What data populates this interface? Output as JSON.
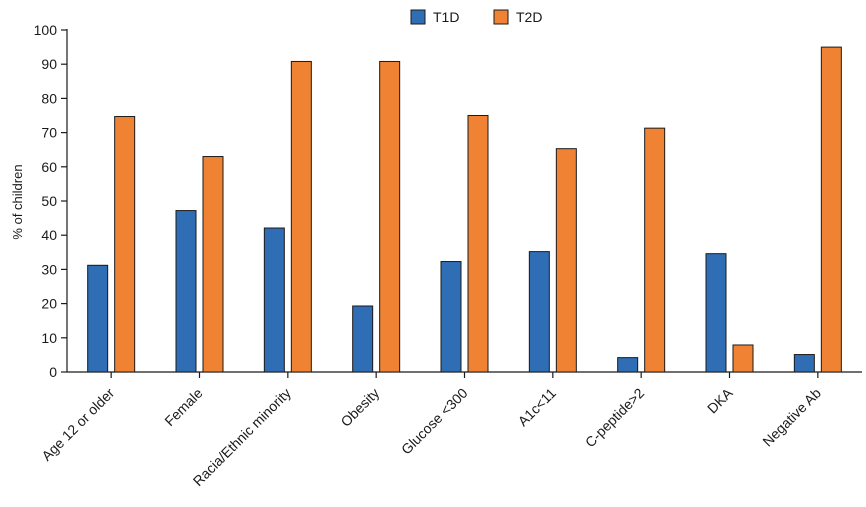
{
  "chart_data": {
    "type": "bar",
    "title": "",
    "xlabel": "",
    "ylabel": "% of children",
    "ylim": [
      0,
      100
    ],
    "yticks": [
      0,
      10,
      20,
      30,
      40,
      50,
      60,
      70,
      80,
      90,
      100
    ],
    "grid": false,
    "legend_position": "top-center",
    "categories": [
      "Age 12 or older",
      "Female",
      "Racia/Ethnic minority",
      "Obesity",
      "Glucose <300",
      "A1c<11",
      "C-peptide>2",
      "DKA",
      "Negative Ab"
    ],
    "series": [
      {
        "name": "T1D",
        "color": "#2f6db5",
        "values": [
          31.2,
          47.2,
          42.1,
          19.3,
          32.3,
          35.2,
          4.2,
          34.6,
          5.1
        ]
      },
      {
        "name": "T2D",
        "color": "#ef8333",
        "values": [
          74.7,
          63.0,
          90.8,
          90.8,
          75.0,
          65.3,
          71.3,
          7.9,
          95.0
        ]
      }
    ]
  }
}
